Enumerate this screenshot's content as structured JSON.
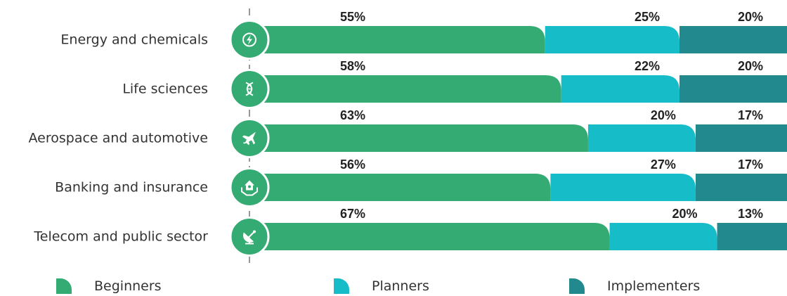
{
  "chart_data": {
    "type": "bar",
    "orientation": "horizontal",
    "stacked": true,
    "categories": [
      "Energy and chemicals",
      "Life sciences",
      "Aerospace and automotive",
      "Banking and insurance",
      "Telecom and public sector"
    ],
    "icons": [
      "lightning-icon",
      "dna-icon",
      "airplane-icon",
      "house-hand-icon",
      "satellite-dish-icon"
    ],
    "series": [
      {
        "name": "Beginners",
        "color": "#34ab72",
        "values": [
          55,
          58,
          63,
          56,
          67
        ]
      },
      {
        "name": "Planners",
        "color": "#17bcc9",
        "values": [
          25,
          22,
          20,
          27,
          20
        ]
      },
      {
        "name": "Implementers",
        "color": "#228a8f",
        "values": [
          20,
          20,
          17,
          17,
          13
        ]
      }
    ],
    "value_suffix": "%",
    "xlim": [
      0,
      100
    ],
    "legend_position": "bottom",
    "grid": false
  },
  "legend": {
    "beginners": "Beginners",
    "planners": "Planners",
    "implementers": "Implementers"
  }
}
